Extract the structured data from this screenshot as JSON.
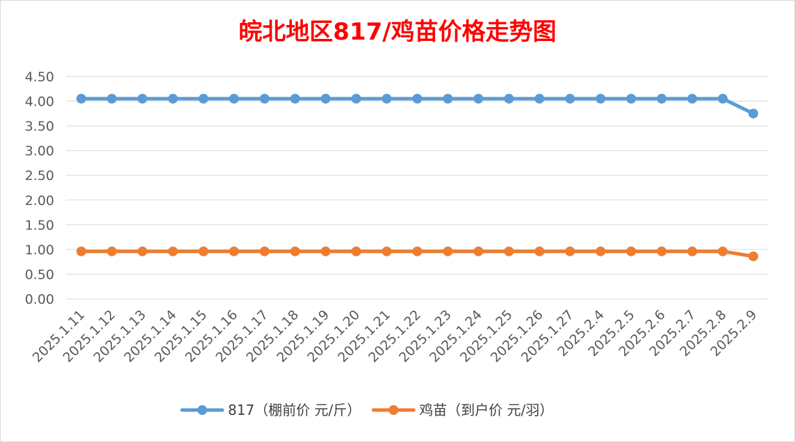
{
  "chart_data": {
    "type": "line",
    "title": "皖北地区817/鸡苗价格走势图",
    "xlabel": "",
    "ylabel": "",
    "ylim": [
      0,
      4.5
    ],
    "yticks": [
      "0.00",
      "0.50",
      "1.00",
      "1.50",
      "2.00",
      "2.50",
      "3.00",
      "3.50",
      "4.00",
      "4.50"
    ],
    "grid": true,
    "legend_position": "bottom",
    "categories": [
      "2025.1.11",
      "2025.1.12",
      "2025.1.13",
      "2025.1.14",
      "2025.1.15",
      "2025.1.16",
      "2025.1.17",
      "2025.1.18",
      "2025.1.19",
      "2025.1.20",
      "2025.1.21",
      "2025.1.22",
      "2025.1.23",
      "2025.1.24",
      "2025.1.25",
      "2025.1.26",
      "2025.1.27",
      "2025.2.4",
      "2025.2.5",
      "2025.2.6",
      "2025.2.7",
      "2025.2.8",
      "2025.2.9"
    ],
    "series": [
      {
        "name": "817（棚前价 元/斤）",
        "color": "#5b9bd5",
        "values": [
          4.05,
          4.05,
          4.05,
          4.05,
          4.05,
          4.05,
          4.05,
          4.05,
          4.05,
          4.05,
          4.05,
          4.05,
          4.05,
          4.05,
          4.05,
          4.05,
          4.05,
          4.05,
          4.05,
          4.05,
          4.05,
          4.05,
          3.75
        ]
      },
      {
        "name": "鸡苗（到户价 元/羽）",
        "color": "#ed7d31",
        "values": [
          0.96,
          0.96,
          0.96,
          0.96,
          0.96,
          0.96,
          0.96,
          0.96,
          0.96,
          0.96,
          0.96,
          0.96,
          0.96,
          0.96,
          0.96,
          0.96,
          0.96,
          0.96,
          0.96,
          0.96,
          0.96,
          0.96,
          0.86
        ]
      }
    ]
  }
}
